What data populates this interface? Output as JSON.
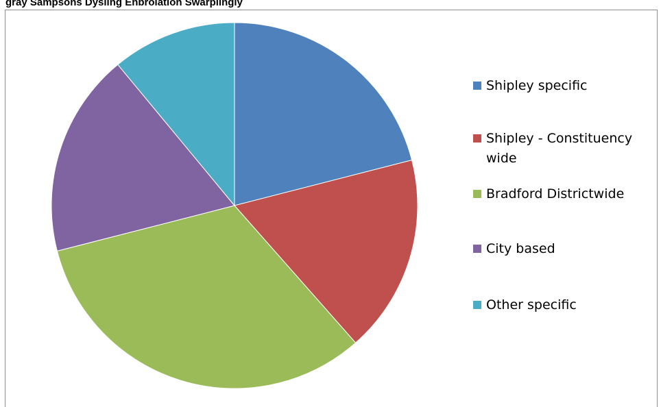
{
  "title": "gray Sampsons Dysling Enbrolation Swarplingly",
  "chart_data": {
    "type": "pie",
    "title": "",
    "legend_position": "right",
    "categories": [
      "Shipley specific",
      "Shipley - Constituency wide",
      "Bradford Districtwide",
      "City based",
      "Other specific"
    ],
    "values": [
      21,
      17.5,
      32.5,
      18,
      11
    ],
    "colors": [
      "#4f81bd",
      "#c0504d",
      "#9bbb59",
      "#8064a2",
      "#4bacc6"
    ]
  }
}
